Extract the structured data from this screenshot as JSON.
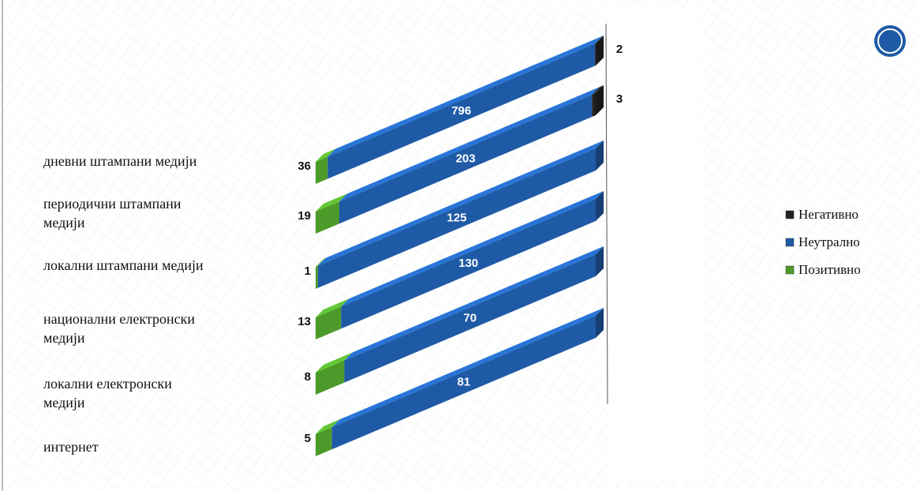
{
  "chart_data": {
    "type": "stacked-bar-3d",
    "categories": [
      "дневни штампани медији",
      "периодични штампани медији",
      "локални штампани медији",
      "национални електронски медији",
      "локални електронски медији",
      "интернет"
    ],
    "series": [
      {
        "name": "Позитивно",
        "color": "#4c9a2a",
        "values": [
          36,
          19,
          1,
          13,
          8,
          5
        ]
      },
      {
        "name": "Неутрално",
        "color": "#1f5aa6",
        "values": [
          796,
          203,
          125,
          130,
          70,
          81
        ]
      },
      {
        "name": "Негативно",
        "color": "#222222",
        "values": [
          2,
          3,
          null,
          null,
          null,
          null
        ]
      }
    ]
  }
}
